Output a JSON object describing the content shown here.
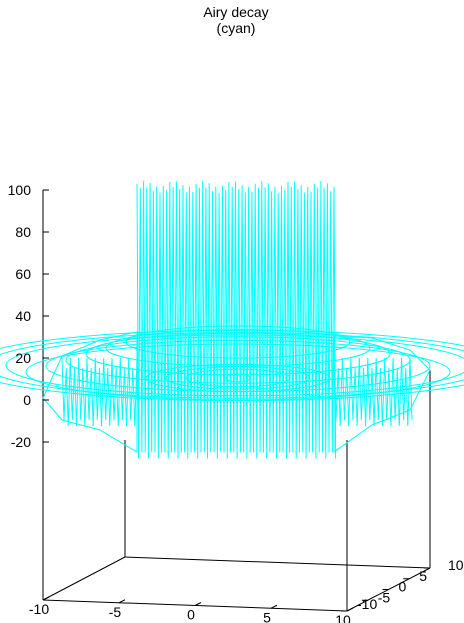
{
  "chart_data": {
    "type": "surface",
    "title_lines": [
      "Airy decay",
      "(cyan)"
    ],
    "series_color": "#00ffff",
    "axis_color": "#000000",
    "zlim": [
      -20,
      100
    ],
    "xlim": [
      -10,
      10
    ],
    "ylim": [
      -10,
      10
    ],
    "z_ticks": [
      {
        "value": -20,
        "label": "-20"
      },
      {
        "value": 0,
        "label": "0"
      },
      {
        "value": 20,
        "label": "20"
      },
      {
        "value": 40,
        "label": "40"
      },
      {
        "value": 60,
        "label": "60"
      },
      {
        "value": 80,
        "label": "80"
      },
      {
        "value": 100,
        "label": "100"
      }
    ],
    "x_ticks": [
      {
        "value": -10,
        "label": "-10"
      },
      {
        "value": -5,
        "label": "-5"
      },
      {
        "value": 0,
        "label": "0"
      },
      {
        "value": 5,
        "label": "5"
      },
      {
        "value": 10,
        "label": "10"
      }
    ],
    "y_ticks": [
      {
        "value": -10,
        "label": "-10"
      },
      {
        "value": -5,
        "label": "-5"
      },
      {
        "value": 0,
        "label": "0"
      },
      {
        "value": 5,
        "label": "5"
      },
      {
        "value": 10,
        "label": "10"
      }
    ],
    "profile": {
      "r_values": [
        0,
        2,
        3,
        4,
        5,
        6,
        7,
        8,
        9,
        10,
        11,
        12,
        13
      ],
      "plateau_height": 100,
      "plateau_radius": 4,
      "ring_height": 20,
      "trough_depth": -25
    }
  }
}
